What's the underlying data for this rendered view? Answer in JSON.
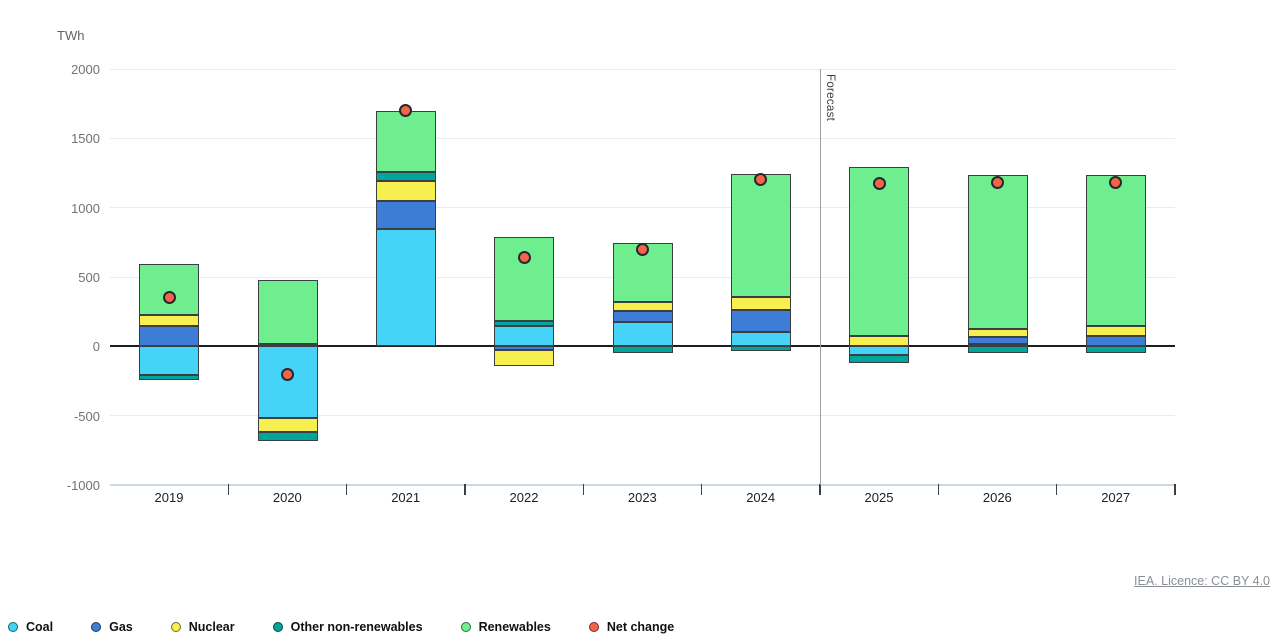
{
  "header": {
    "unit_label": "TWh"
  },
  "footer": {
    "license_text": "IEA. Licence: CC BY 4.0"
  },
  "chart_data": {
    "type": "bar",
    "stacked": true,
    "title": "",
    "ylabel": "TWh",
    "categories": [
      "2019",
      "2020",
      "2021",
      "2022",
      "2023",
      "2024",
      "2025",
      "2026",
      "2027"
    ],
    "series": [
      {
        "name": "Coal",
        "color": "#45d3f7",
        "values": [
          -210,
          -515,
          845,
          150,
          175,
          100,
          -60,
          20,
          0
        ]
      },
      {
        "name": "Gas",
        "color": "#3d7dd6",
        "values": [
          150,
          20,
          200,
          -30,
          80,
          165,
          0,
          50,
          75
        ]
      },
      {
        "name": "Nuclear",
        "color": "#f7ee4f",
        "values": [
          75,
          -105,
          145,
          -115,
          65,
          90,
          75,
          55,
          70
        ]
      },
      {
        "name": "Other non-renewables",
        "color": "#00a59b",
        "values": [
          -30,
          -60,
          70,
          35,
          -45,
          -35,
          -60,
          -50,
          -50
        ]
      },
      {
        "name": "Renewables",
        "color": "#6fee8f",
        "values": [
          370,
          455,
          440,
          600,
          425,
          885,
          1220,
          1110,
          1090
        ]
      }
    ],
    "net_change": {
      "name": "Net change",
      "color": "#f3654b",
      "values": [
        355,
        -205,
        1700,
        640,
        700,
        1205,
        1175,
        1185,
        1185
      ]
    },
    "y_axis": {
      "ticks": [
        2000,
        1500,
        1000,
        500,
        0,
        -500,
        -1000
      ],
      "range": [
        -1000,
        2000
      ],
      "unit": "TWh"
    },
    "forecast_divider": {
      "after_category": "2024",
      "label": "Forecast"
    },
    "grid": true,
    "legend_position": "bottom"
  },
  "legend": {
    "items": [
      {
        "label": "Coal",
        "color": "#45d3f7"
      },
      {
        "label": "Gas",
        "color": "#3d7dd6"
      },
      {
        "label": "Nuclear",
        "color": "#f7ee4f"
      },
      {
        "label": "Other non-renewables",
        "color": "#00a59b"
      },
      {
        "label": "Renewables",
        "color": "#6fee8f"
      },
      {
        "label": "Net change",
        "color": "#f3654b"
      }
    ]
  }
}
